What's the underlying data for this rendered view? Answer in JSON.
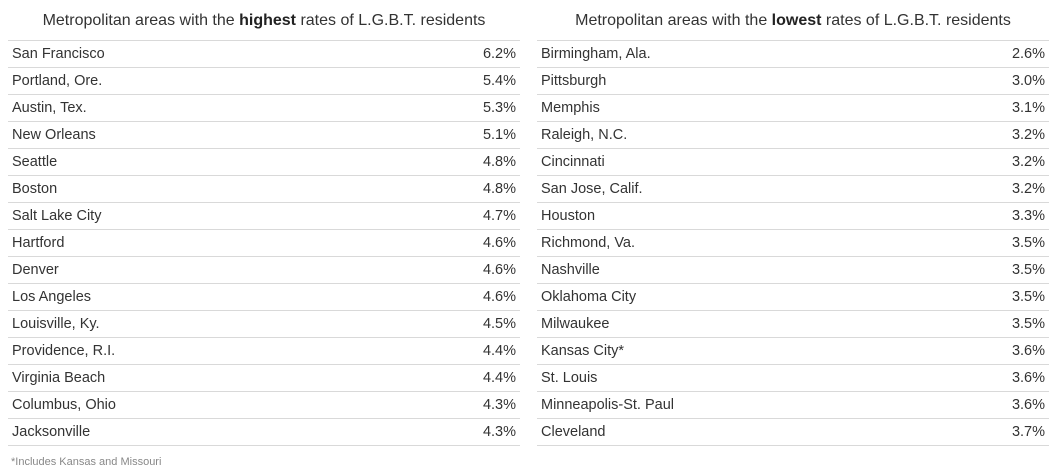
{
  "highest": {
    "title_pre": "Metropolitan areas with the ",
    "title_bold": "highest",
    "title_post": " rates of L.G.B.T. residents",
    "rows": [
      {
        "city": "San Francisco",
        "rate": "6.2%"
      },
      {
        "city": "Portland, Ore.",
        "rate": "5.4%"
      },
      {
        "city": "Austin, Tex.",
        "rate": "5.3%"
      },
      {
        "city": "New Orleans",
        "rate": "5.1%"
      },
      {
        "city": "Seattle",
        "rate": "4.8%"
      },
      {
        "city": "Boston",
        "rate": "4.8%"
      },
      {
        "city": "Salt Lake City",
        "rate": "4.7%"
      },
      {
        "city": "Hartford",
        "rate": "4.6%"
      },
      {
        "city": "Denver",
        "rate": "4.6%"
      },
      {
        "city": "Los Angeles",
        "rate": "4.6%"
      },
      {
        "city": "Louisville, Ky.",
        "rate": "4.5%"
      },
      {
        "city": "Providence, R.I.",
        "rate": "4.4%"
      },
      {
        "city": "Virginia Beach",
        "rate": "4.4%"
      },
      {
        "city": "Columbus, Ohio",
        "rate": "4.3%"
      },
      {
        "city": "Jacksonville",
        "rate": "4.3%"
      }
    ]
  },
  "lowest": {
    "title_pre": "Metropolitan areas with the ",
    "title_bold": "lowest",
    "title_post": " rates of L.G.B.T. residents",
    "rows": [
      {
        "city": "Birmingham, Ala.",
        "rate": "2.6%"
      },
      {
        "city": "Pittsburgh",
        "rate": "3.0%"
      },
      {
        "city": "Memphis",
        "rate": "3.1%"
      },
      {
        "city": "Raleigh, N.C.",
        "rate": "3.2%"
      },
      {
        "city": "Cincinnati",
        "rate": "3.2%"
      },
      {
        "city": "San Jose, Calif.",
        "rate": "3.2%"
      },
      {
        "city": "Houston",
        "rate": "3.3%"
      },
      {
        "city": "Richmond, Va.",
        "rate": "3.5%"
      },
      {
        "city": "Nashville",
        "rate": "3.5%"
      },
      {
        "city": "Oklahoma City",
        "rate": "3.5%"
      },
      {
        "city": "Milwaukee",
        "rate": "3.5%"
      },
      {
        "city": "Kansas City*",
        "rate": "3.6%"
      },
      {
        "city": "St. Louis",
        "rate": "3.6%"
      },
      {
        "city": "Minneapolis-St. Paul",
        "rate": "3.6%"
      },
      {
        "city": "Cleveland",
        "rate": "3.7%"
      }
    ]
  },
  "footnote": "*Includes Kansas and Missouri"
}
